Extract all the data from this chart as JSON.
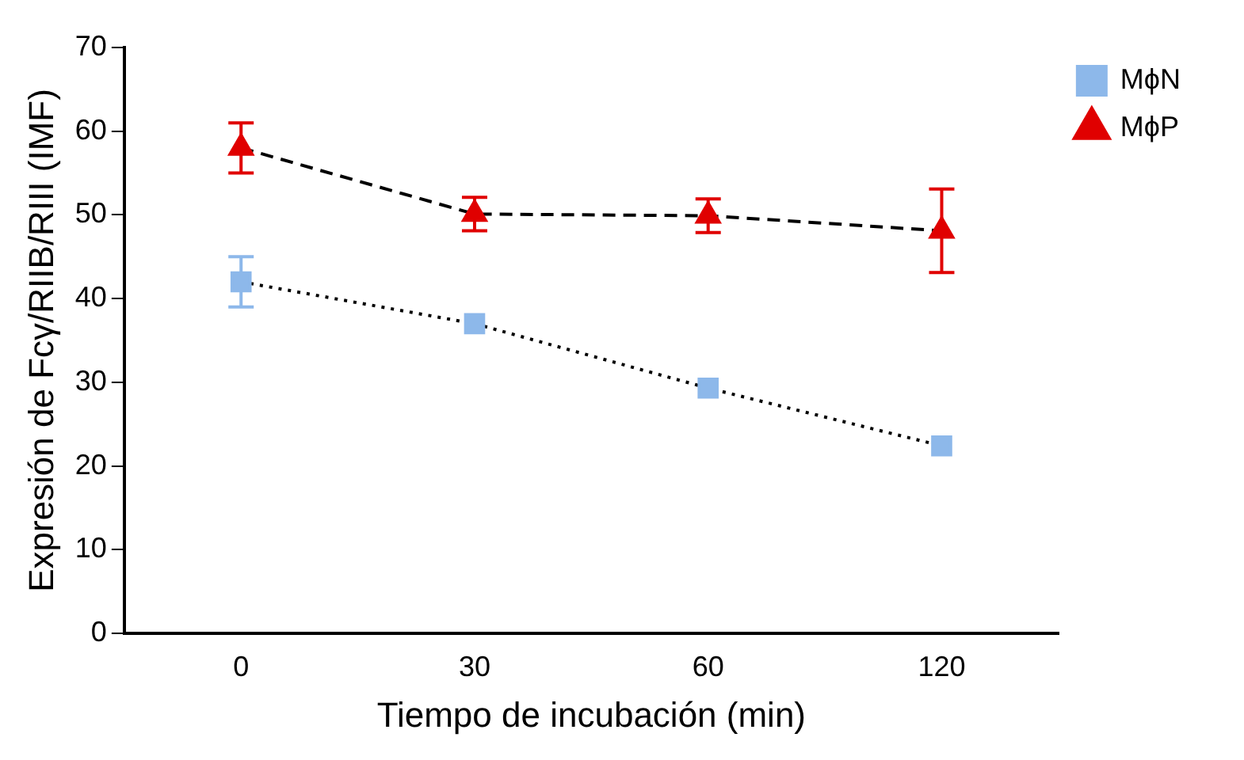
{
  "chart_data": {
    "type": "line",
    "xlabel": "Tiempo de incubación (min)",
    "ylabel": "Expresión de Fcγ/RIIB/RIII (IMF)",
    "categories": [
      "0",
      "30",
      "60",
      "120"
    ],
    "series": [
      {
        "name": "MϕN",
        "color": "#8db8ea",
        "values": [
          42,
          37,
          29.3,
          22.4
        ],
        "errors": [
          3,
          null,
          null,
          null
        ],
        "marker": "square",
        "line_style": "dotted"
      },
      {
        "name": "MϕP",
        "color": "#e00000",
        "values": [
          58,
          50.1,
          49.9,
          48.1
        ],
        "errors": [
          3,
          2,
          2,
          5
        ],
        "marker": "triangle",
        "line_style": "dashed"
      }
    ],
    "ylim": [
      0,
      70
    ],
    "yticks": [
      0,
      10,
      20,
      30,
      40,
      50,
      60,
      70
    ],
    "grid": false,
    "legend": "top right"
  }
}
